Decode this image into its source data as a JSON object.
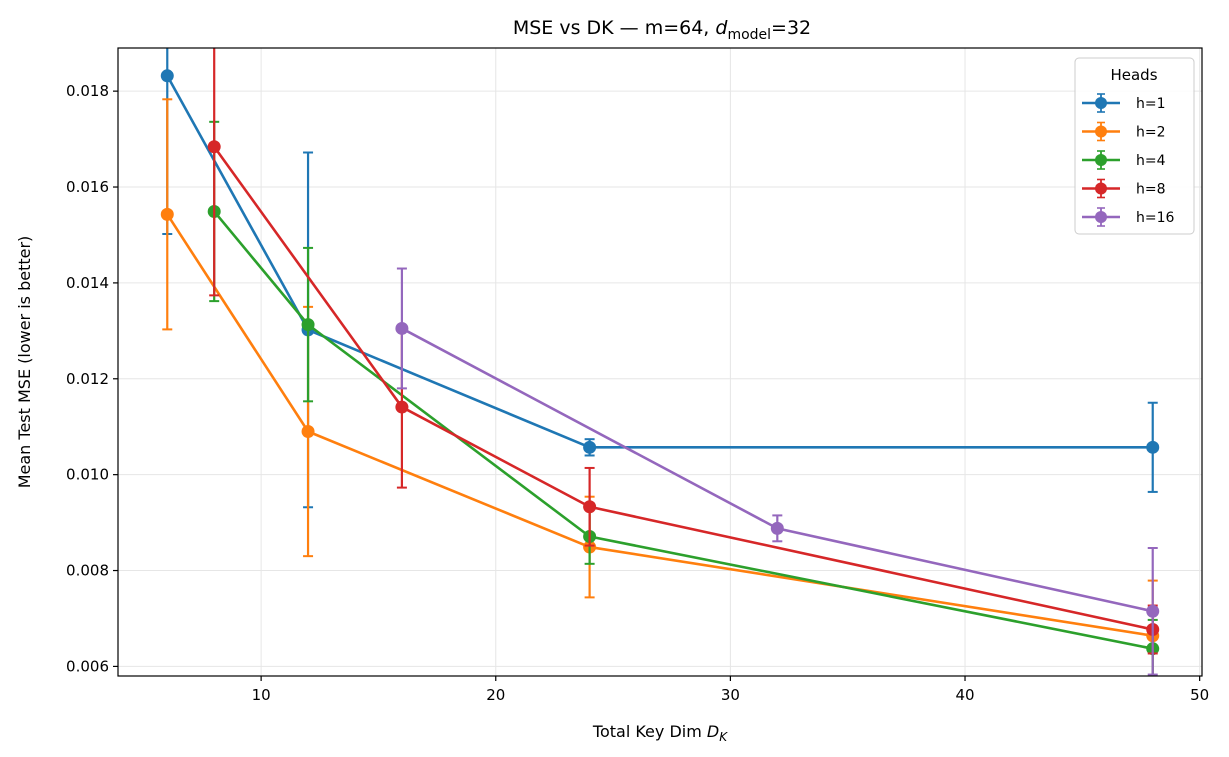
{
  "chart_data": {
    "type": "line",
    "title": "MSE vs DK — m=64, d_model=32",
    "title_parts": {
      "main": "MSE vs DK — m=64, ",
      "d_symbol": "d",
      "subscript": "model",
      "suffix": "=32"
    },
    "xlabel": "Total Key Dim D_K",
    "xlabel_parts": {
      "main": "Total Key Dim ",
      "symbol": "D",
      "subscript": "K"
    },
    "ylabel": "Mean Test MSE (lower is better)",
    "xlim": [
      3.9,
      50.1
    ],
    "ylim": [
      0.0058,
      0.0189
    ],
    "xticks": [
      10,
      20,
      30,
      40,
      50
    ],
    "xtick_labels": [
      "10",
      "20",
      "30",
      "40",
      "50"
    ],
    "yticks": [
      0.006,
      0.008,
      0.01,
      0.012,
      0.014,
      0.016,
      0.018
    ],
    "ytick_labels": [
      "0.006",
      "0.008",
      "0.010",
      "0.012",
      "0.014",
      "0.016",
      "0.018"
    ],
    "grid": true,
    "legend": {
      "title": "Heads",
      "placement": "top-right"
    },
    "series": [
      {
        "name": "h=1",
        "color": "#1f77b4",
        "x": [
          6,
          12,
          24,
          48
        ],
        "y": [
          0.01832,
          0.01302,
          0.01057,
          0.01057
        ],
        "err": [
          0.0033,
          0.0037,
          0.00017,
          0.00093
        ]
      },
      {
        "name": "h=2",
        "color": "#ff7f0e",
        "x": [
          6,
          12,
          24,
          48
        ],
        "y": [
          0.01543,
          0.0109,
          0.00849,
          0.00664
        ],
        "err": [
          0.0024,
          0.0026,
          0.00105,
          0.00115
        ]
      },
      {
        "name": "h=4",
        "color": "#2ca02c",
        "x": [
          8,
          12,
          24,
          48
        ],
        "y": [
          0.01549,
          0.01313,
          0.00871,
          0.00637
        ],
        "err": [
          0.00187,
          0.0016,
          0.00057,
          0.0006
        ]
      },
      {
        "name": "h=8",
        "color": "#d62728",
        "x": [
          8,
          16,
          24,
          48
        ],
        "y": [
          0.01684,
          0.01141,
          0.00933,
          0.00677
        ],
        "err": [
          0.0031,
          0.00168,
          0.00081,
          0.0005
        ]
      },
      {
        "name": "h=16",
        "color": "#9467bd",
        "x": [
          16,
          32,
          48
        ],
        "y": [
          0.01305,
          0.00888,
          0.00715
        ],
        "err": [
          0.00125,
          0.00027,
          0.00132
        ]
      }
    ]
  }
}
